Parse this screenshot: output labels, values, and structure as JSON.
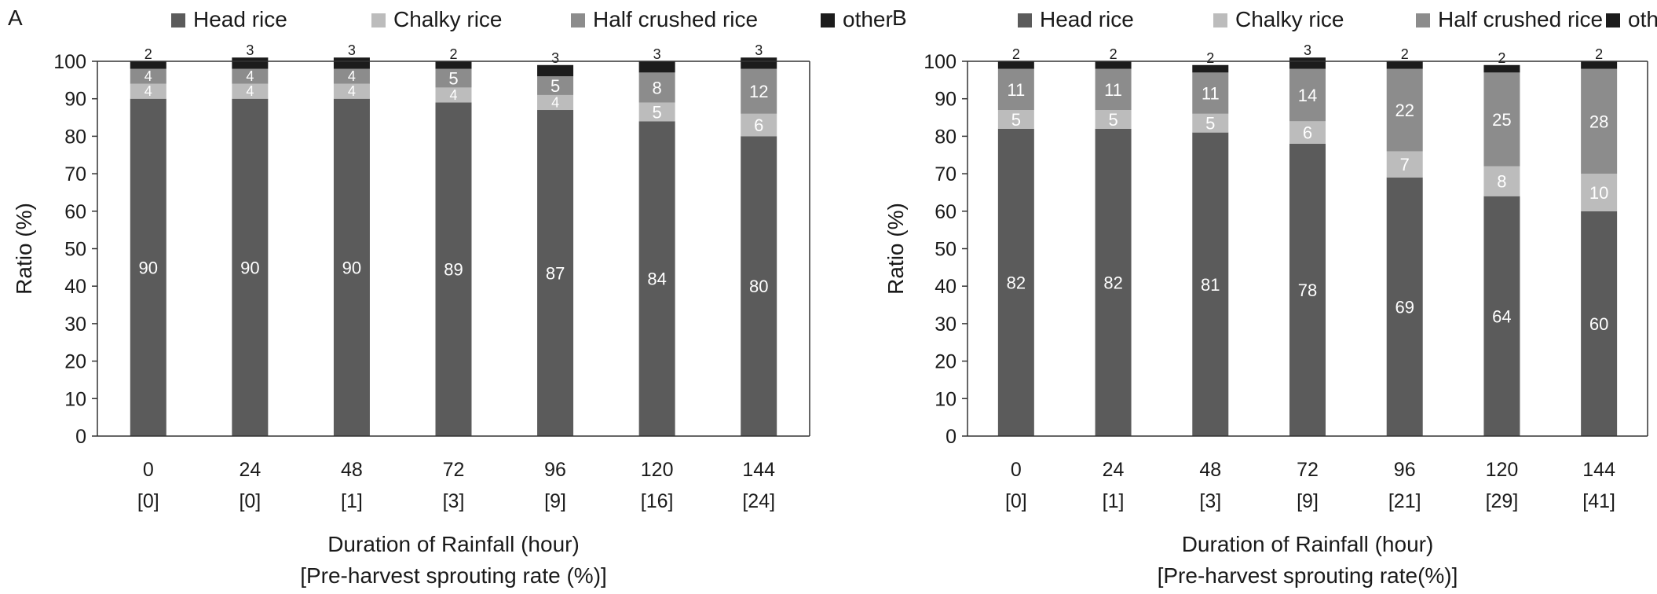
{
  "chart_data": [
    {
      "type": "bar",
      "stacked": true,
      "panel_label": "A",
      "categories": [
        "0",
        "24",
        "48",
        "72",
        "96",
        "120",
        "144"
      ],
      "category_sublabels": [
        "[0]",
        "[0]",
        "[1]",
        "[3]",
        "[9]",
        "[16]",
        "[24]"
      ],
      "xlabel": "Duration of Rainfall (hour)",
      "xlabel2": "[Pre-harvest sprouting rate (%)]",
      "ylabel": "Ratio (%)",
      "ylim": [
        0,
        100
      ],
      "yticks": [
        0,
        10,
        20,
        30,
        40,
        50,
        60,
        70,
        80,
        90,
        100
      ],
      "grid": false,
      "legend_position": "top",
      "series": [
        {
          "name": "Head rice",
          "color": "#5b5b5b",
          "values": [
            90,
            90,
            90,
            89,
            87,
            84,
            80
          ]
        },
        {
          "name": "Chalky rice",
          "color": "#bcbcbc",
          "values": [
            4,
            4,
            4,
            4,
            4,
            5,
            6
          ]
        },
        {
          "name": "Half crushed rice",
          "color": "#8c8c8c",
          "values": [
            4,
            4,
            4,
            5,
            5,
            8,
            12
          ]
        },
        {
          "name": "other",
          "color": "#1c1c1c",
          "values": [
            2,
            3,
            3,
            2,
            3,
            3,
            3
          ]
        }
      ]
    },
    {
      "type": "bar",
      "stacked": true,
      "panel_label": "B",
      "categories": [
        "0",
        "24",
        "48",
        "72",
        "96",
        "120",
        "144"
      ],
      "category_sublabels": [
        "[0]",
        "[1]",
        "[3]",
        "[9]",
        "[21]",
        "[29]",
        "[41]"
      ],
      "xlabel": "Duration of Rainfall (hour)",
      "xlabel2": "[Pre-harvest sprouting rate(%)]",
      "ylabel": "Ratio (%)",
      "ylim": [
        0,
        100
      ],
      "yticks": [
        0,
        10,
        20,
        30,
        40,
        50,
        60,
        70,
        80,
        90,
        100
      ],
      "grid": false,
      "legend_position": "top",
      "series": [
        {
          "name": "Head rice",
          "color": "#5b5b5b",
          "values": [
            82,
            82,
            81,
            78,
            69,
            64,
            60
          ]
        },
        {
          "name": "Chalky rice",
          "color": "#bcbcbc",
          "values": [
            5,
            5,
            5,
            6,
            7,
            8,
            10
          ]
        },
        {
          "name": "Half crushed rice",
          "color": "#8c8c8c",
          "values": [
            11,
            11,
            11,
            14,
            22,
            25,
            28
          ]
        },
        {
          "name": "other",
          "color": "#1c1c1c",
          "values": [
            2,
            2,
            2,
            3,
            2,
            2,
            2
          ]
        }
      ]
    }
  ]
}
